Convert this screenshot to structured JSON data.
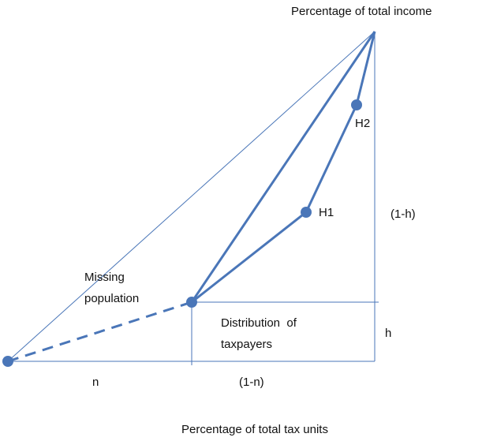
{
  "axes": {
    "y_title": "Percentage of total income",
    "x_title": "Percentage of total tax units"
  },
  "points": {
    "h1": "H1",
    "h2": "H2"
  },
  "segments": {
    "one_minus_h": "(1-h)",
    "h": "h",
    "n": "n",
    "one_minus_n": "(1-n)"
  },
  "regions": {
    "missing": [
      "Missing",
      "population"
    ],
    "distribution": [
      "Distribution  of",
      "taxpayers"
    ]
  }
}
